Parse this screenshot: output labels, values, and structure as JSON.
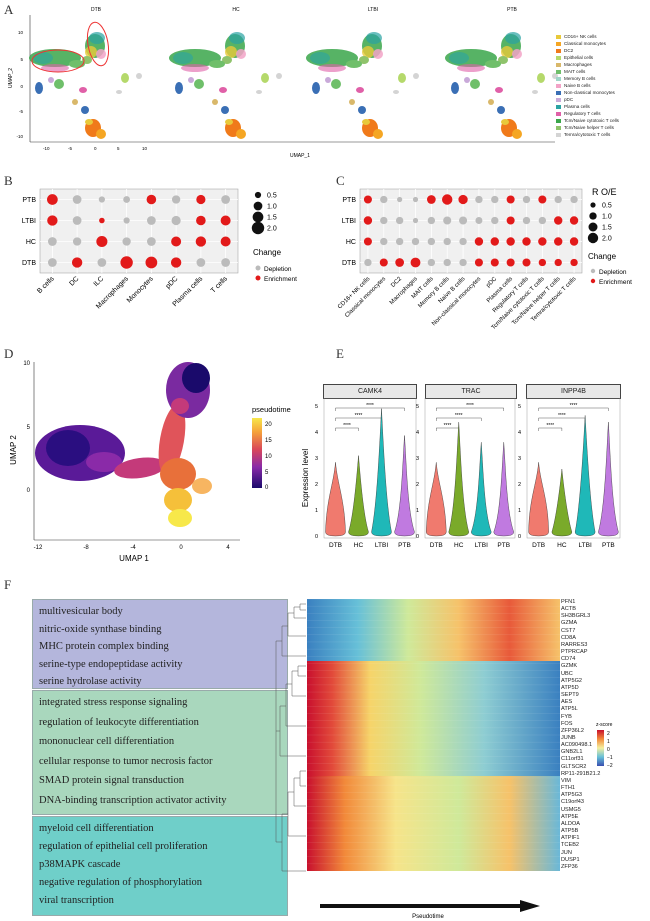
{
  "panels": {
    "A": "A",
    "B": "B",
    "C": "C",
    "D": "D",
    "E": "E",
    "F": "F"
  },
  "panel_a": {
    "titles": [
      "DTB",
      "HC",
      "LTBI",
      "PTB"
    ],
    "xlabel": "UMAP_1",
    "ylabel": "UMAP_2",
    "xticks": [
      "-10",
      "-5",
      "0",
      "5",
      "10"
    ],
    "yticks": [
      "10",
      "5",
      "0",
      "-5",
      "-10"
    ],
    "legend": [
      {
        "label": "CD16+ NK cells",
        "color": "#e8c93a"
      },
      {
        "label": "Classical monocytes",
        "color": "#f5a623"
      },
      {
        "label": "DC2",
        "color": "#f07a1a"
      },
      {
        "label": "Epithelial cells",
        "color": "#b5d96b"
      },
      {
        "label": "Macrophages",
        "color": "#d9b86a"
      },
      {
        "label": "MAIT cells",
        "color": "#6fbf6a"
      },
      {
        "label": "Memory B cells",
        "color": "#9fd6c9"
      },
      {
        "label": "Naive B cells",
        "color": "#f2a3c7"
      },
      {
        "label": "Non-classical monocytes",
        "color": "#3a6fb5"
      },
      {
        "label": "pDC",
        "color": "#c9a9d9"
      },
      {
        "label": "Plasma cells",
        "color": "#2aa3a3"
      },
      {
        "label": "Regulatory T cells",
        "color": "#e060a8"
      },
      {
        "label": "Tcm/Naive cytotoxic T cells",
        "color": "#3aa64a"
      },
      {
        "label": "Tcm/Naive helper T cells",
        "color": "#8fc36b"
      },
      {
        "label": "Temra/cytotoxic T cells",
        "color": "#d4d4d4"
      }
    ]
  },
  "panel_b": {
    "rows": [
      "PTB",
      "LTBI",
      "HC",
      "DTB"
    ],
    "cols": [
      "B cells",
      "DC",
      "ILC",
      "Macrophages",
      "Monocytes",
      "pDC",
      "Plasma cells",
      "T cells"
    ],
    "legend_size_values": [
      "0.5",
      "1.0",
      "1.5",
      "2.0"
    ],
    "change_title": "Change",
    "change_depletion": "Depletion",
    "change_enrichment": "Enrichment"
  },
  "panel_c": {
    "rows": [
      "PTB",
      "LTBI",
      "HC",
      "DTB"
    ],
    "cols": [
      "CD16+ NK cells",
      "Classical monocytes",
      "DC2",
      "Macrophages",
      "MAIT cells",
      "Memory B cells",
      "Naive B cells",
      "Non-classical monocytes",
      "pDC",
      "Plasma cells",
      "Regulatory T cells",
      "Tcm/Naive cytotoxic T cells",
      "Tcm/Naive helper T cells",
      "Temra/cytotoxic T cells"
    ],
    "size_title": "R O/E",
    "legend_size_values": [
      "0.5",
      "1.0",
      "1.5",
      "2.0"
    ],
    "change_title": "Change",
    "change_depletion": "Depletion",
    "change_enrichment": "Enrichment"
  },
  "panel_d": {
    "xlabel": "UMAP 1",
    "ylabel": "UMAP 2",
    "xticks": [
      "-12",
      "-8",
      "-4",
      "0",
      "4"
    ],
    "yticks": [
      "10",
      "5",
      "0"
    ],
    "legend_title": "pseudotime",
    "legend_ticks": [
      "20",
      "15",
      "10",
      "5",
      "0"
    ]
  },
  "panel_e": {
    "genes": [
      "CAMK4",
      "TRAC",
      "INPP4B"
    ],
    "groups": [
      "DTB",
      "HC",
      "LTBI",
      "PTB"
    ],
    "ylabel": "Expression level",
    "yticks": [
      "5",
      "4",
      "3",
      "2",
      "1",
      "0"
    ],
    "sig": "****"
  },
  "panel_f": {
    "blocks": [
      {
        "terms": [
          "multivesicular body",
          "nitric-oxide synthase binding",
          "MHC protein complex binding",
          "serine-type endopeptidase activity",
          "serine hydrolase activity"
        ],
        "color": "#b4b6dc"
      },
      {
        "terms": [
          "integrated stress response signaling",
          "regulation of leukocyte differentiation",
          "mononuclear cell differentiation",
          "cellular response to tumor necrosis factor",
          "SMAD protein signal transduction",
          "DNA-binding transcription activator activity"
        ],
        "color": "#a9d7bd"
      },
      {
        "terms": [
          "myeloid cell differentiation",
          "regulation of epithelial cell proliferation",
          "p38MAPK cascade",
          "negative regulation of phosphorylation",
          "viral transcription"
        ],
        "color": "#6fcfc9"
      }
    ],
    "genes": [
      "PFN1",
      "ACTB",
      "SH3BGRL3",
      "GZMA",
      "CST7",
      "CD8A",
      "RARRES3",
      "PTPRCAP",
      "CD74",
      "GZMK",
      "UBC",
      "ATP5G2",
      "ATP5D",
      "SEPT9",
      "AES",
      "ATP5L",
      "FYB",
      "FOS",
      "ZFP36L2",
      "JUNB",
      "AC090498.1",
      "GNB2L1",
      "C11orf31",
      "GLTSCR2",
      "RP11-291B21.2",
      "VIM",
      "FTH1",
      "ATP5G3",
      "C19orf43",
      "USMG5",
      "ATP5E",
      "ALDOA",
      "ATP5B",
      "ATPIF1",
      "TCEB2",
      "JUN",
      "DUSP1",
      "ZFP36"
    ],
    "zscore_title": "z-score",
    "zscore_ticks": [
      "2",
      "1",
      "0",
      "−1",
      "−2"
    ],
    "xlabel": "Pseudotime"
  },
  "chart_data": [
    {
      "type": "scatter",
      "title": "Dot plot B (cell type change per group)",
      "rows": [
        "PTB",
        "LTBI",
        "HC",
        "DTB"
      ],
      "categories": [
        "B cells",
        "DC",
        "ILC",
        "Macrophages",
        "Monocytes",
        "pDC",
        "Plasma cells",
        "T cells"
      ],
      "size_values": [
        [
          1.5,
          1.0,
          0.5,
          0.6,
          1.2,
          0.9,
          1.1,
          1.0
        ],
        [
          1.4,
          1.0,
          0.4,
          0.5,
          1.0,
          1.1,
          1.2,
          1.3
        ],
        [
          1.0,
          0.9,
          1.6,
          0.9,
          1.0,
          1.3,
          1.4,
          1.3
        ],
        [
          1.0,
          1.4,
          1.0,
          2.0,
          1.8,
          1.4,
          1.0,
          1.0
        ]
      ],
      "change": [
        [
          "E",
          "D",
          "D",
          "D",
          "E",
          "D",
          "E",
          "D"
        ],
        [
          "E",
          "D",
          "E",
          "D",
          "D",
          "D",
          "E",
          "E"
        ],
        [
          "D",
          "D",
          "E",
          "D",
          "D",
          "E",
          "E",
          "E"
        ],
        [
          "D",
          "E",
          "D",
          "E",
          "E",
          "E",
          "D",
          "D"
        ]
      ],
      "legend_sizes": [
        0.5,
        1.0,
        1.5,
        2.0
      ]
    },
    {
      "type": "scatter",
      "title": "Dot plot C (R O/E)",
      "rows": [
        "PTB",
        "LTBI",
        "HC",
        "DTB"
      ],
      "categories": [
        "CD16+ NK cells",
        "Classical monocytes",
        "DC2",
        "Macrophages",
        "MAIT cells",
        "Memory B cells",
        "Naive B cells",
        "Non-classical monocytes",
        "pDC",
        "Plasma cells",
        "Regulatory T cells",
        "Tcm/Naive cytotoxic T cells",
        "Tcm/Naive helper T cells",
        "Temra/cytotoxic T cells"
      ],
      "size_values": [
        [
          1.2,
          1.0,
          0.5,
          0.5,
          1.4,
          2.0,
          1.6,
          1.0,
          1.0,
          1.2,
          1.0,
          1.2,
          1.0,
          1.0
        ],
        [
          1.3,
          1.0,
          1.0,
          0.5,
          1.0,
          1.2,
          1.2,
          0.9,
          1.0,
          1.2,
          1.0,
          1.0,
          1.3,
          1.3
        ],
        [
          1.2,
          1.0,
          1.0,
          1.0,
          1.0,
          1.0,
          1.0,
          1.3,
          1.3,
          1.3,
          1.3,
          1.3,
          1.3,
          1.3
        ],
        [
          1.0,
          1.2,
          1.4,
          1.8,
          1.0,
          1.0,
          1.0,
          1.2,
          1.2,
          1.2,
          1.2,
          1.0,
          1.0,
          1.0
        ]
      ],
      "change": [
        [
          "E",
          "D",
          "D",
          "D",
          "E",
          "E",
          "E",
          "D",
          "D",
          "E",
          "D",
          "E",
          "D",
          "D"
        ],
        [
          "E",
          "D",
          "D",
          "D",
          "D",
          "D",
          "D",
          "D",
          "D",
          "E",
          "D",
          "D",
          "E",
          "E"
        ],
        [
          "E",
          "D",
          "D",
          "D",
          "D",
          "D",
          "D",
          "E",
          "E",
          "E",
          "E",
          "E",
          "E",
          "E"
        ],
        [
          "D",
          "E",
          "E",
          "E",
          "D",
          "D",
          "D",
          "E",
          "E",
          "E",
          "E",
          "E",
          "E",
          "E"
        ]
      ],
      "legend_sizes": [
        0.5,
        1.0,
        1.5,
        2.0
      ]
    },
    {
      "type": "heatmap",
      "title": "Pseudotime heatmap F",
      "xlabel": "Pseudotime",
      "zlim": [
        -2,
        2
      ],
      "rows": [
        "PFN1",
        "ACTB",
        "SH3BGRL3",
        "GZMA",
        "CST7",
        "CD8A",
        "RARRES3",
        "PTPRCAP",
        "CD74",
        "GZMK",
        "UBC",
        "ATP5G2",
        "ATP5D",
        "SEPT9",
        "AES",
        "ATP5L",
        "FYB",
        "FOS",
        "ZFP36L2",
        "JUNB",
        "AC090498.1",
        "GNB2L1",
        "C11orf31",
        "GLTSCR2",
        "RP11-291B21.2",
        "VIM",
        "FTH1",
        "ATP5G3",
        "C19orf43",
        "USMG5",
        "ATP5E",
        "ALDOA",
        "ATP5B",
        "ATPIF1",
        "TCEB2",
        "JUN",
        "DUSP1",
        "ZFP36"
      ]
    }
  ]
}
